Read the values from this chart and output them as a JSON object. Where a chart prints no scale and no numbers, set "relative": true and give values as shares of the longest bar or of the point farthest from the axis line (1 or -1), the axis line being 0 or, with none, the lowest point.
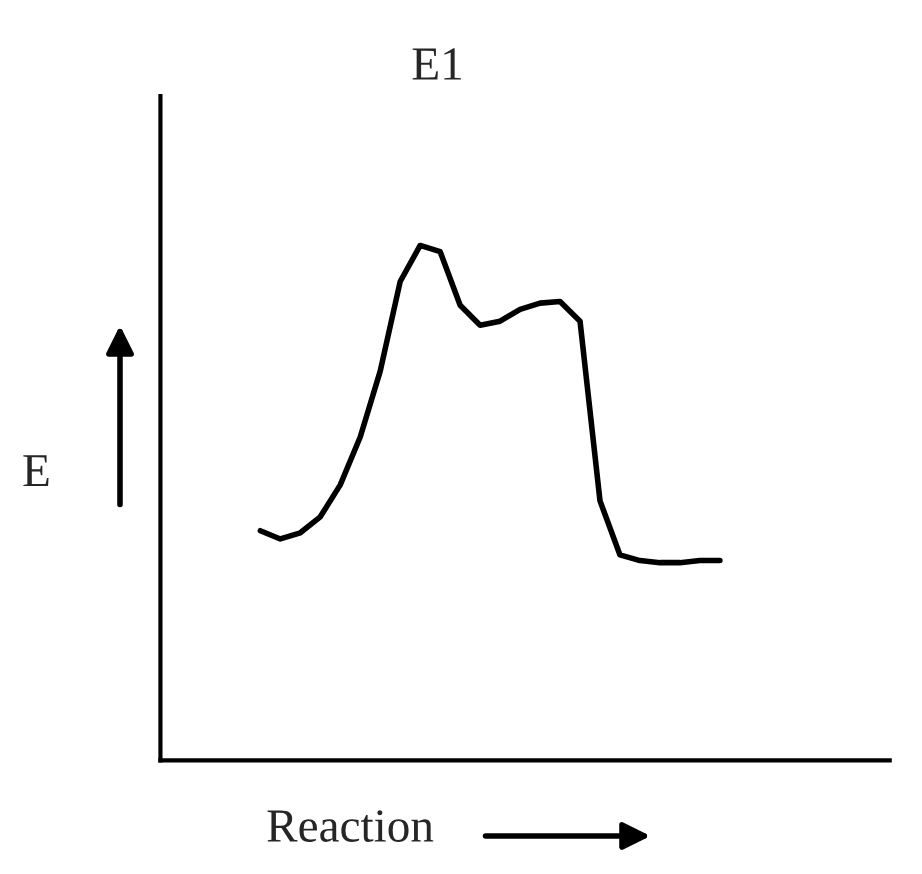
{
  "chart_data": {
    "type": "line",
    "title": "E1",
    "xlabel": "Reaction",
    "ylabel": "E",
    "relative": true,
    "legend": false,
    "marker": "none",
    "line_style": "solid",
    "categories": [
      null,
      null,
      null,
      null,
      null,
      null,
      null,
      null,
      null,
      null,
      null,
      null,
      null,
      null,
      null,
      null,
      null,
      null,
      null,
      null,
      null,
      null,
      null,
      null
    ],
    "series": [
      {
        "color": "#000000",
        "values": [
          0.446,
          0.43,
          0.442,
          0.473,
          0.535,
          0.628,
          0.756,
          0.93,
          1,
          0.988,
          0.884,
          0.845,
          0.853,
          0.876,
          0.888,
          0.891,
          0.853,
          0.504,
          0.399,
          0.388,
          0.384,
          0.384,
          0.388,
          0.388
        ]
      }
    ]
  }
}
